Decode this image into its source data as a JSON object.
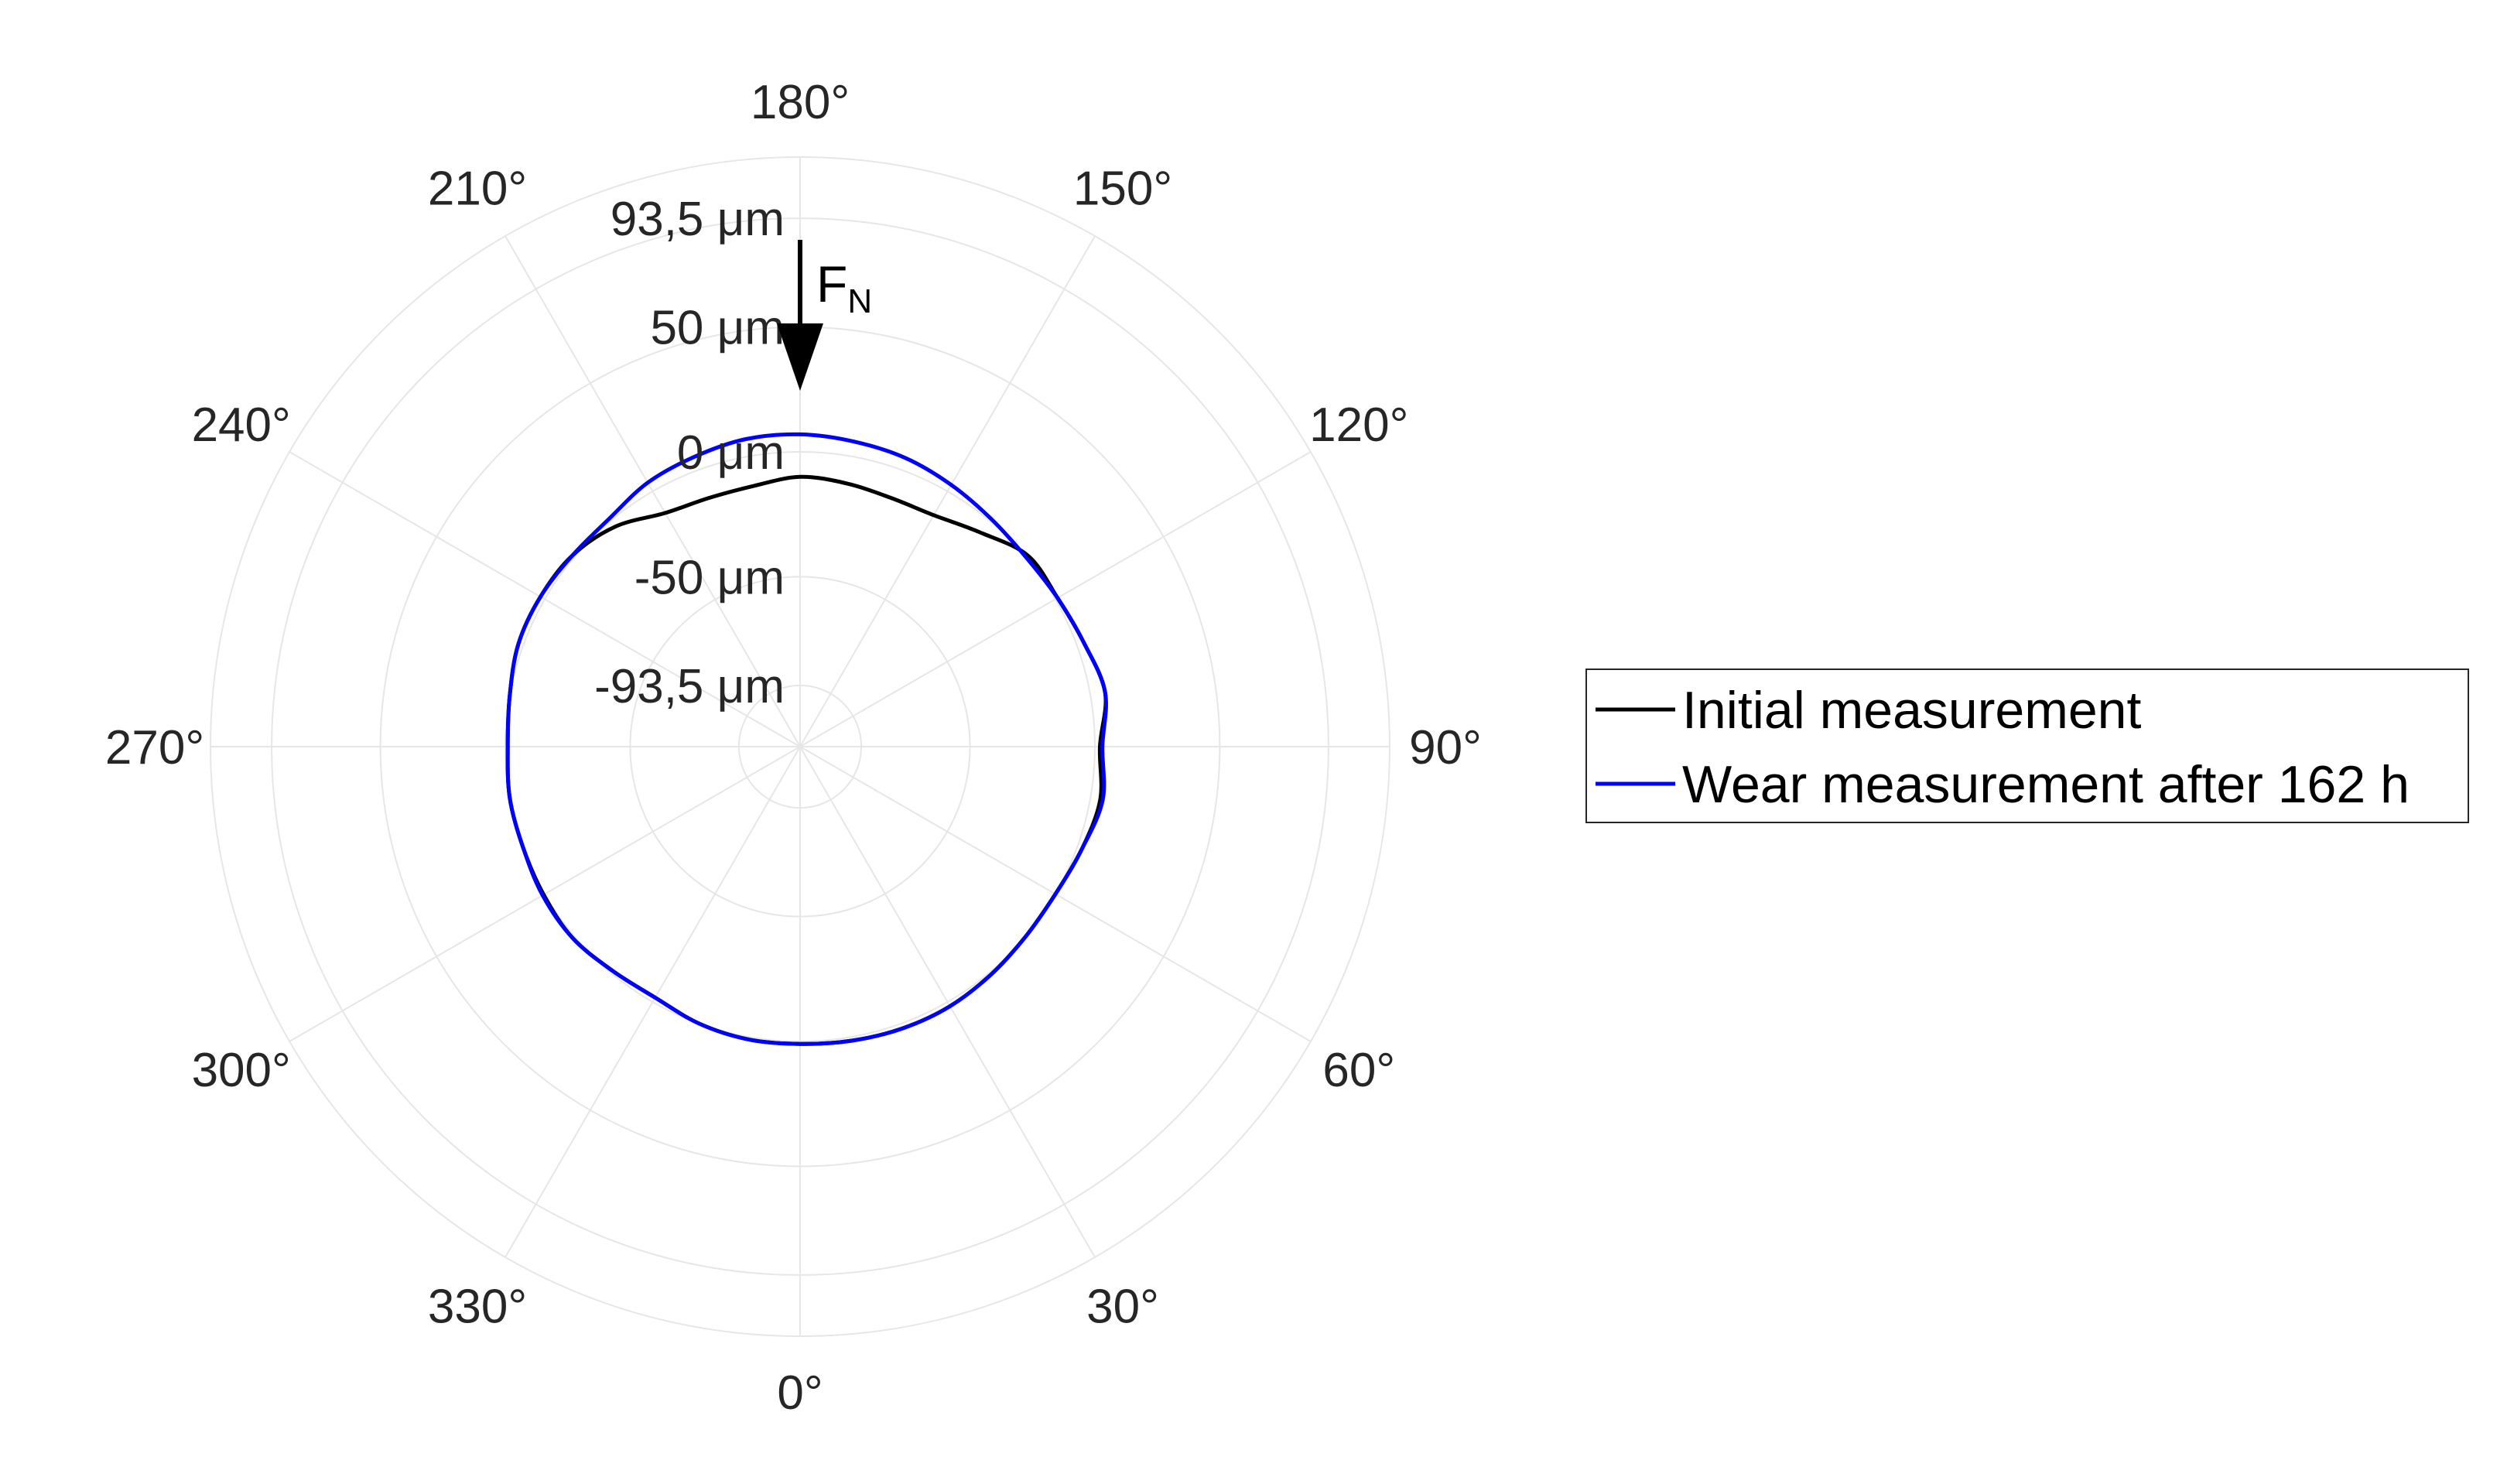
{
  "chart_data": {
    "type": "polar-line",
    "title": "",
    "theta_zero_location": "bottom",
    "theta_direction": "counterclockwise",
    "angle_ticks": [
      0,
      30,
      60,
      90,
      120,
      150,
      180,
      210,
      240,
      270,
      300,
      330
    ],
    "angle_tick_labels": [
      "0°",
      "30°",
      "60°",
      "90°",
      "120°",
      "150°",
      "180°",
      "210°",
      "240°",
      "270°",
      "300°",
      "330°"
    ],
    "r_ticks": [
      -93.5,
      -50,
      0,
      50,
      93.5
    ],
    "r_tick_labels": [
      "-93,5 μm",
      "-50 μm",
      "0 μm",
      "50 μm",
      "93,5 μm"
    ],
    "r_unit": "μm",
    "rlim": [
      -118,
      118
    ],
    "grid": true,
    "legend_position": "right",
    "annotation": {
      "label": "F",
      "subscript": "N",
      "direction": "down",
      "at_angle": 180
    },
    "series": [
      {
        "name": "Initial measurement",
        "color": "#000000",
        "theta": [
          0,
          10,
          20,
          30,
          40,
          50,
          60,
          70,
          80,
          90,
          100,
          110,
          120,
          130,
          140,
          150,
          160,
          170,
          180,
          190,
          200,
          210,
          220,
          230,
          240,
          250,
          260,
          270,
          280,
          290,
          300,
          310,
          320,
          330,
          340,
          350
        ],
        "r": [
          1.0,
          1.5,
          2.0,
          2.0,
          1.0,
          0.0,
          0.0,
          2.0,
          4.0,
          2.0,
          6.0,
          3.0,
          1.0,
          1.0,
          -6.0,
          -11.0,
          -12.0,
          -11.0,
          -10.0,
          -12.0,
          -12.0,
          -10.0,
          -3.0,
          1.0,
          2.0,
          2.0,
          0.0,
          -1.0,
          0.0,
          0.0,
          0.5,
          1.0,
          -1.0,
          -2.0,
          0.0,
          1.0
        ]
      },
      {
        "name": "Wear measurement after 162 h",
        "color": "#0000ff",
        "theta": [
          0,
          10,
          20,
          30,
          40,
          50,
          60,
          70,
          80,
          90,
          100,
          110,
          120,
          130,
          140,
          150,
          160,
          170,
          180,
          190,
          200,
          210,
          220,
          230,
          240,
          250,
          260,
          270,
          280,
          290,
          300,
          310,
          320,
          330,
          340,
          350
        ],
        "r": [
          1.0,
          1.5,
          2.0,
          2.0,
          1.0,
          0.0,
          0.0,
          2.0,
          5.0,
          3.0,
          6.0,
          3.0,
          1.0,
          0.0,
          1.0,
          3.0,
          5.0,
          6.0,
          7.0,
          7.0,
          5.5,
          4.0,
          1.0,
          1.0,
          2.0,
          2.0,
          0.0,
          -1.0,
          0.0,
          0.0,
          1.0,
          1.0,
          -1.0,
          -2.0,
          0.0,
          1.0
        ]
      }
    ]
  }
}
